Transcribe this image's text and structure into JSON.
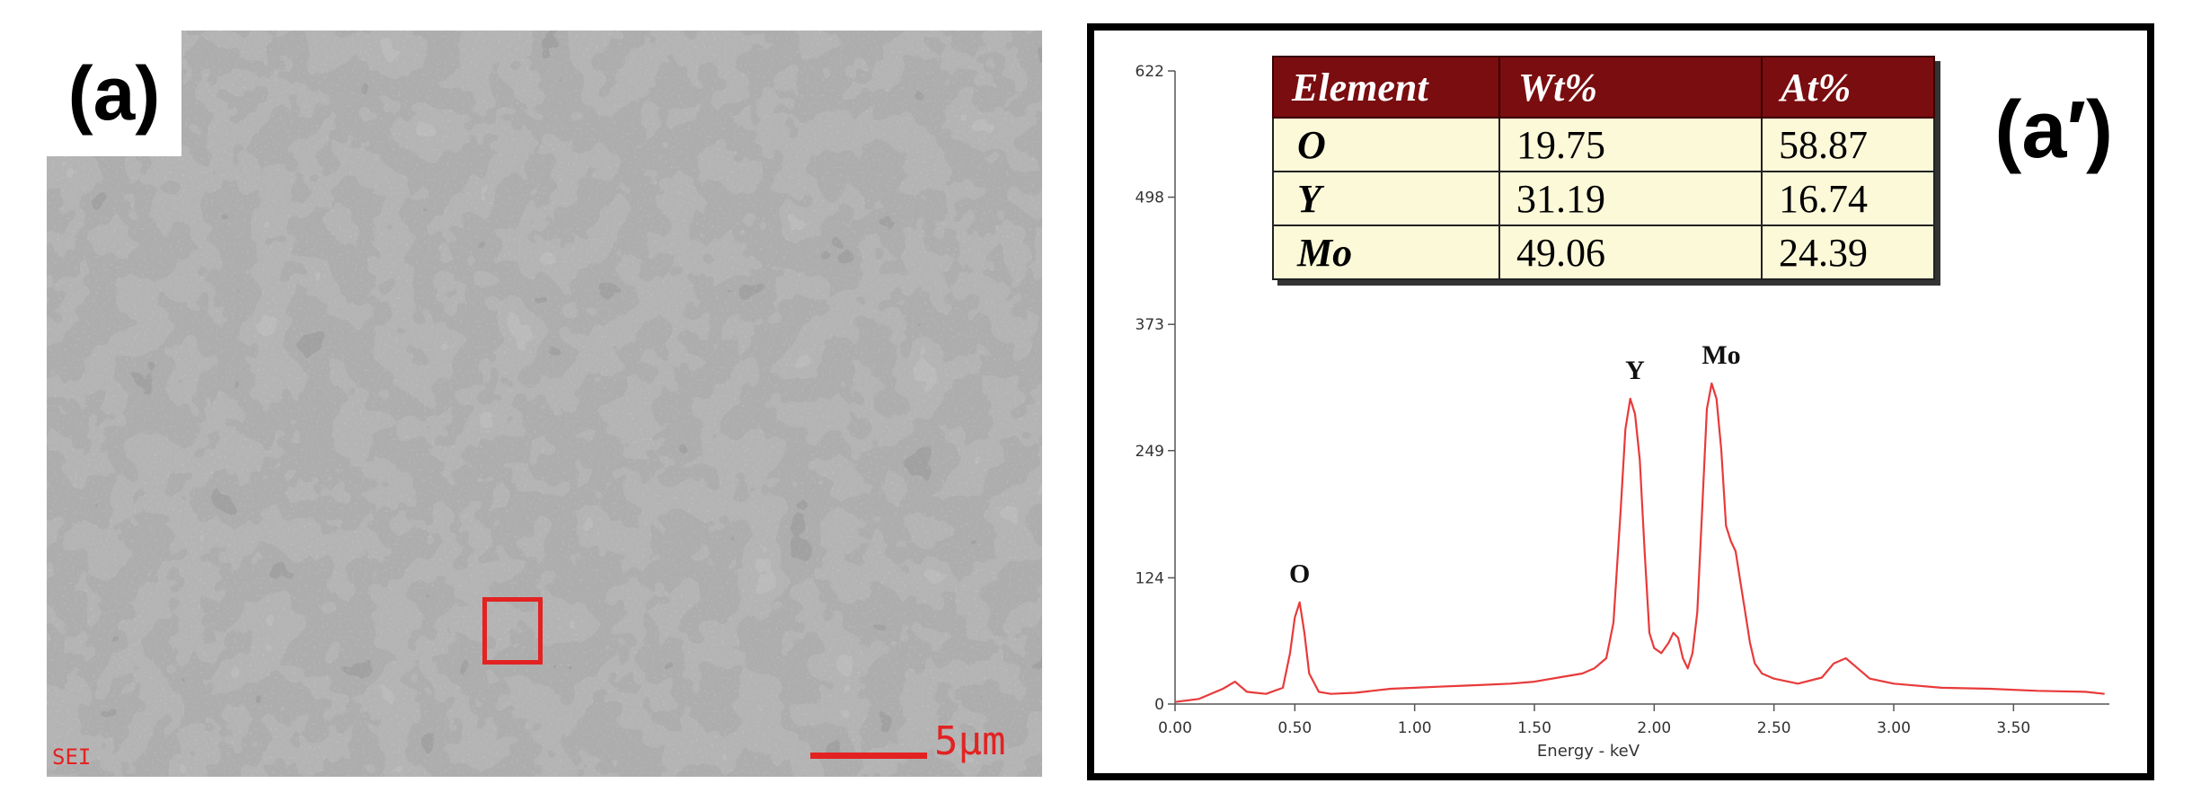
{
  "panel_a": {
    "label": "(a)",
    "detector_label": "SEI",
    "scale_label": "5μm",
    "roi_color": "#e32222"
  },
  "panel_b": {
    "label": "(a′)",
    "table": {
      "headers": [
        "Element",
        "Wt%",
        "At%"
      ],
      "rows": [
        {
          "element": "O",
          "wt": "19.75",
          "at": "58.87"
        },
        {
          "element": "Y",
          "wt": "31.19",
          "at": "16.74"
        },
        {
          "element": "Mo",
          "wt": "49.06",
          "at": "24.39"
        }
      ]
    }
  },
  "chart_data": {
    "type": "line",
    "xlabel": "Energy - keV",
    "ylabel": "",
    "xlim": [
      0,
      3.9
    ],
    "ylim": [
      0,
      622
    ],
    "x_ticks": [
      "0.00",
      "0.50",
      "1.00",
      "1.50",
      "2.00",
      "2.50",
      "3.00",
      "3.50"
    ],
    "y_ticks": [
      "0",
      "124",
      "249",
      "373",
      "498",
      "622"
    ],
    "grid": false,
    "line_color": "#e83a3a",
    "series": [
      {
        "x": [
          0.0,
          0.1,
          0.2,
          0.25,
          0.3,
          0.38,
          0.45,
          0.48,
          0.5,
          0.52,
          0.54,
          0.56,
          0.6,
          0.65,
          0.75,
          0.9,
          1.0,
          1.1,
          1.2,
          1.3,
          1.4,
          1.5,
          1.6,
          1.7,
          1.75,
          1.8,
          1.83,
          1.86,
          1.88,
          1.9,
          1.92,
          1.94,
          1.96,
          1.98,
          2.0,
          2.03,
          2.06,
          2.08,
          2.1,
          2.12,
          2.14,
          2.16,
          2.18,
          2.2,
          2.22,
          2.24,
          2.26,
          2.28,
          2.3,
          2.32,
          2.34,
          2.36,
          2.38,
          2.4,
          2.42,
          2.45,
          2.5,
          2.6,
          2.7,
          2.75,
          2.8,
          2.85,
          2.9,
          3.0,
          3.2,
          3.4,
          3.6,
          3.8,
          3.88
        ],
        "y": [
          2,
          5,
          15,
          22,
          12,
          10,
          16,
          50,
          85,
          100,
          70,
          30,
          12,
          10,
          11,
          15,
          16,
          17,
          18,
          19,
          20,
          22,
          26,
          30,
          35,
          45,
          80,
          190,
          270,
          300,
          285,
          240,
          150,
          70,
          55,
          50,
          60,
          70,
          65,
          45,
          35,
          50,
          90,
          190,
          290,
          315,
          300,
          250,
          175,
          160,
          150,
          120,
          90,
          60,
          40,
          30,
          25,
          20,
          26,
          40,
          45,
          35,
          25,
          20,
          16,
          15,
          13,
          12,
          10
        ]
      }
    ],
    "annotations": [
      {
        "text": "O",
        "x": 0.52,
        "y": 100
      },
      {
        "text": "Y",
        "x": 1.92,
        "y": 300
      },
      {
        "text": "Mo",
        "x": 2.28,
        "y": 315
      }
    ]
  }
}
